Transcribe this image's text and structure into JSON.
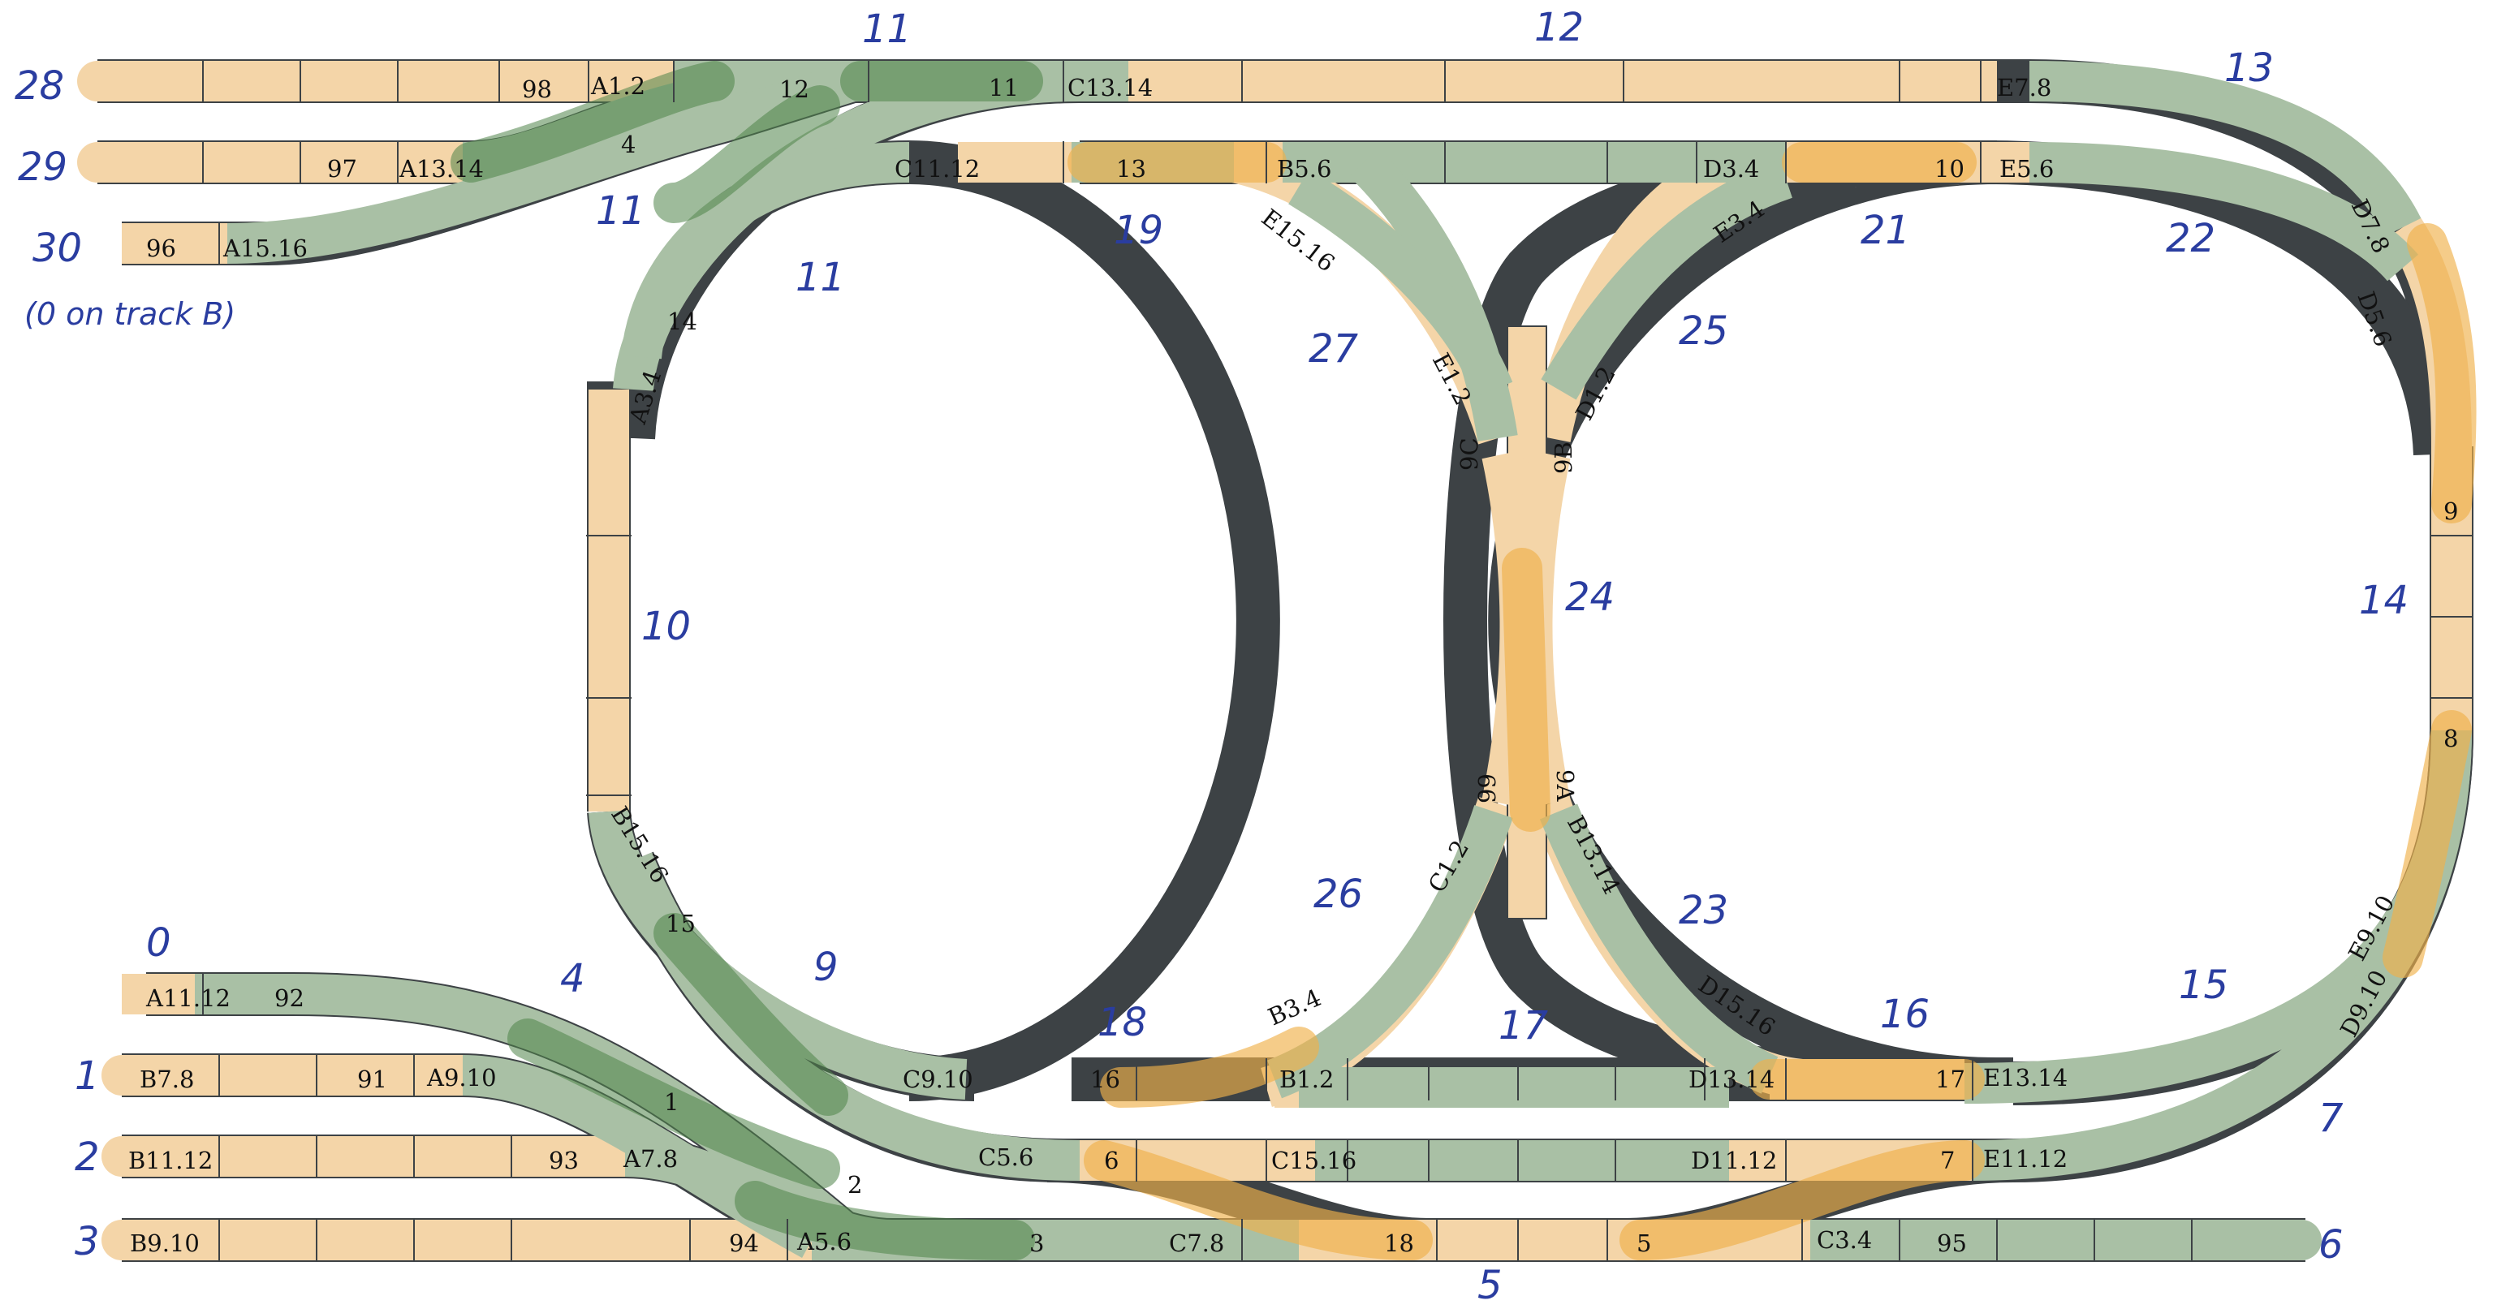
{
  "piece_labels": {
    "r28_98": "98",
    "r28_a12": "A1.2",
    "r28_12": "12",
    "r28_11": "11",
    "r28_c1314": "C13.14",
    "r28_e78": "E7.8",
    "r29_97": "97",
    "r29_a1314": "A13.14",
    "r29_4": "4",
    "r30_96": "96",
    "r30_a1516": "A15.16",
    "c1112": "C11.12",
    "p13": "13",
    "b56": "B5.6",
    "d34": "D3.4",
    "p10": "10",
    "e56": "E5.6",
    "p14": "14",
    "a34": "A3.4",
    "e1516": "E15.16",
    "e12": "E1.2",
    "p9c": "9C",
    "e34": "E3.4",
    "d12": "D1.2",
    "p9b": "9B",
    "d78": "D7.8",
    "d56": "D5.6",
    "p9": "9",
    "p8": "8",
    "b1516": "B15.16",
    "p15": "15",
    "p99": "99",
    "c12": "C1.2",
    "p9a": "9A",
    "b1314": "B13.14",
    "e910": "E9.10",
    "d910": "D9.10",
    "a1112": "A11.12",
    "p92": "92",
    "b34": "B3.4",
    "d1516": "D15.16",
    "b78": "B7.8",
    "p91": "91",
    "a910": "A9.10",
    "p1": "1",
    "c910": "C9.10",
    "p16": "16",
    "b12": "B1.2",
    "d1314": "D13.14",
    "p17": "17",
    "e1314": "E13.14",
    "b1112": "B11.12",
    "p93": "93",
    "a78": "A7.8",
    "p2": "2",
    "c56": "C5.6",
    "p6": "6",
    "c1516": "C15.16",
    "d1112": "D11.12",
    "p7": "7",
    "e1112": "E11.12",
    "b910": "B9.10",
    "p94": "94",
    "a56": "A5.6",
    "p3": "3",
    "c78": "C7.8",
    "p18": "18",
    "p5": "5",
    "c34": "C3.4",
    "p95": "95"
  },
  "handwritten": {
    "n28": "28",
    "n29": "29",
    "n30": "30",
    "note30": "(0 on track B)",
    "n11_top": "11",
    "n12_top": "12",
    "n13": "13",
    "n11_mid": "11",
    "n11_left": "11",
    "n19": "19",
    "n21": "21",
    "n22": "22",
    "n27": "27",
    "n25": "25",
    "n24": "24",
    "n10": "10",
    "n14": "14",
    "n9": "9",
    "n26": "26",
    "n23": "23",
    "n0": "0",
    "n4": "4",
    "n18": "18",
    "n17": "17",
    "n16": "16",
    "n15": "15",
    "n1": "1",
    "n2": "2",
    "n3": "3",
    "n7": "7",
    "n5": "5",
    "n6": "6"
  },
  "colors": {
    "orange_route": "#f4d5a8",
    "green_route": "#a9c0a5",
    "handwriting": "#2a3da0"
  }
}
